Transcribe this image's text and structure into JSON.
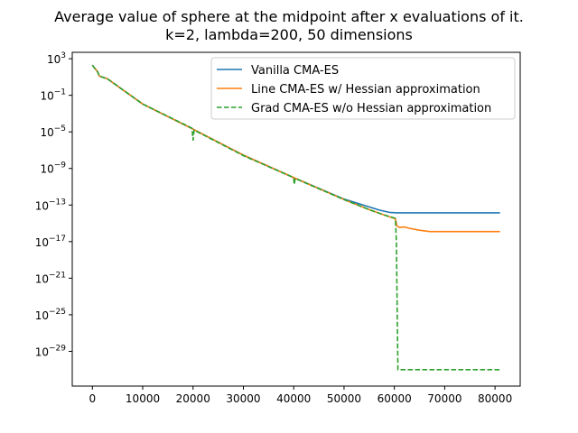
{
  "chart_data": {
    "type": "line",
    "title": "Average value of sphere at the midpoint after x evaluations of it.",
    "subtitle": "k=2, lambda=200, 50 dimensions",
    "xlabel": "",
    "ylabel": "",
    "xlim": [
      -4000,
      85000
    ],
    "ylim_log10": [
      -32.8,
      3.7
    ],
    "y_scale": "log",
    "grid": false,
    "legend_position": "top-right",
    "x_ticks": [
      0,
      10000,
      20000,
      30000,
      40000,
      50000,
      60000,
      70000,
      80000
    ],
    "y_ticks": [
      {
        "base": "10",
        "exp": "3",
        "log10": 3
      },
      {
        "base": "10",
        "exp": "−1",
        "log10": -1
      },
      {
        "base": "10",
        "exp": "−5",
        "log10": -5
      },
      {
        "base": "10",
        "exp": "−9",
        "log10": -9
      },
      {
        "base": "10",
        "exp": "−13",
        "log10": -13
      },
      {
        "base": "10",
        "exp": "−17",
        "log10": -17
      },
      {
        "base": "10",
        "exp": "−21",
        "log10": -21
      },
      {
        "base": "10",
        "exp": "−25",
        "log10": -25
      },
      {
        "base": "10",
        "exp": "−29",
        "log10": -29
      }
    ],
    "series": [
      {
        "name": "Vanilla CMA-ES",
        "color": "#1f77b4",
        "dash": "solid",
        "x": [
          0,
          400,
          1000,
          1400,
          3000,
          10000,
          20000,
          30000,
          40000,
          50000,
          57000,
          59000,
          60500,
          62000,
          70000,
          81000
        ],
        "log10_y": [
          2.3,
          2.0,
          1.6,
          1.1,
          0.8,
          -1.95,
          -4.7,
          -7.55,
          -10.0,
          -12.35,
          -13.55,
          -13.8,
          -13.85,
          -13.85,
          -13.85,
          -13.85
        ]
      },
      {
        "name": "Line CMA-ES w/ Hessian approximation",
        "color": "#ff7f0e",
        "dash": "solid",
        "x": [
          0,
          400,
          1000,
          1400,
          3000,
          10000,
          20000,
          30000,
          40000,
          50000,
          55000,
          58000,
          60200,
          60500,
          61000,
          62000,
          63000,
          65000,
          67000,
          70000,
          81000
        ],
        "log10_y": [
          2.3,
          2.0,
          1.6,
          1.1,
          0.8,
          -1.95,
          -4.7,
          -7.55,
          -10.0,
          -12.4,
          -13.5,
          -14.1,
          -14.5,
          -15.3,
          -15.45,
          -15.4,
          -15.55,
          -15.75,
          -15.9,
          -15.9,
          -15.9
        ]
      },
      {
        "name": "Grad CMA-ES w/o Hessian approximation",
        "color": "#2ca02c",
        "dash": "dashed",
        "x": [
          0,
          400,
          1000,
          1400,
          3000,
          10000,
          19800,
          20000,
          20200,
          30000,
          40000,
          40100,
          40300,
          50000,
          55000,
          58000,
          60200,
          60400,
          60700,
          61000,
          70000,
          81000
        ],
        "log10_y": [
          2.3,
          2.0,
          1.6,
          1.1,
          0.8,
          -1.95,
          -4.6,
          -5.9,
          -4.8,
          -7.6,
          -10.0,
          -10.75,
          -10.1,
          -12.4,
          -13.5,
          -14.1,
          -14.45,
          -17.0,
          -31.0,
          -31.0,
          -31.0,
          -31.0
        ]
      }
    ]
  }
}
